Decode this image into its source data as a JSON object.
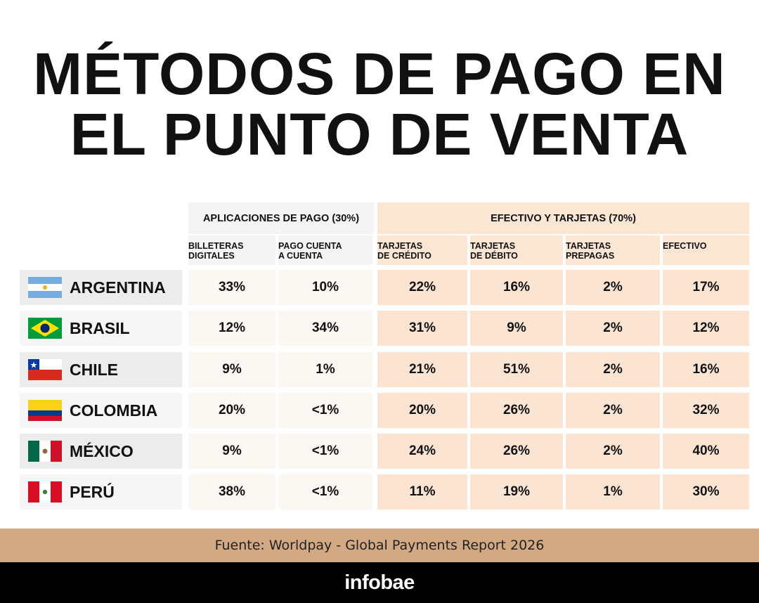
{
  "title": {
    "line1": "MÉTODOS DE PAGO EN",
    "line2": "EL PUNTO DE VENTA"
  },
  "colors": {
    "apps_header_bg": "#f4f4f4",
    "apps_cell_bg": "#fbf7f3",
    "cash_header_bg": "#fbe6d3",
    "cash_cell_bg": "#fbe5d2",
    "country_row_bg_light": "#f6f6f6",
    "country_row_bg_dark": "#ececec",
    "source_bar_bg": "#d2a982",
    "brand_bar_bg": "#000000"
  },
  "chart_data": {
    "type": "table",
    "title": "MÉTODOS DE PAGO EN EL PUNTO DE VENTA",
    "groups": [
      {
        "label": "APLICACIONES DE PAGO (30%)",
        "columns": [
          "BILLETERAS DIGITALES",
          "PAGO CUENTA A CUENTA"
        ]
      },
      {
        "label": "EFECTIVO Y TARJETAS (70%)",
        "columns": [
          "TARJETAS DE CRÉDITO",
          "TARJETAS DE DÉBITO",
          "TARJETAS PREPAGAS",
          "EFECTIVO"
        ]
      }
    ],
    "column_headers": [
      [
        "BILLETERAS",
        "DIGITALES"
      ],
      [
        "PAGO CUENTA",
        "A CUENTA"
      ],
      [
        "TARJETAS",
        "DE CRÉDITO"
      ],
      [
        "TARJETAS",
        "DE DÉBITO"
      ],
      [
        "TARJETAS",
        "PREPAGAS"
      ],
      [
        "EFECTIVO"
      ]
    ],
    "rows": [
      {
        "country": "ARGENTINA",
        "flag": "argentina-flag-icon",
        "values": [
          "33%",
          "10%",
          "22%",
          "16%",
          "2%",
          "17%"
        ]
      },
      {
        "country": "BRASIL",
        "flag": "brazil-flag-icon",
        "values": [
          "12%",
          "34%",
          "31%",
          "9%",
          "2%",
          "12%"
        ]
      },
      {
        "country": "CHILE",
        "flag": "chile-flag-icon",
        "values": [
          "9%",
          "1%",
          "21%",
          "51%",
          "2%",
          "16%"
        ]
      },
      {
        "country": "COLOMBIA",
        "flag": "colombia-flag-icon",
        "values": [
          "20%",
          "<1%",
          "20%",
          "26%",
          "2%",
          "32%"
        ]
      },
      {
        "country": "MÉXICO",
        "flag": "mexico-flag-icon",
        "values": [
          "9%",
          "<1%",
          "24%",
          "26%",
          "2%",
          "40%"
        ]
      },
      {
        "country": "PERÚ",
        "flag": "peru-flag-icon",
        "values": [
          "38%",
          "<1%",
          "11%",
          "19%",
          "1%",
          "30%"
        ]
      }
    ]
  },
  "footer": {
    "source": "Fuente: Worldpay - Global Payments Report 2026",
    "brand": "infobae"
  }
}
